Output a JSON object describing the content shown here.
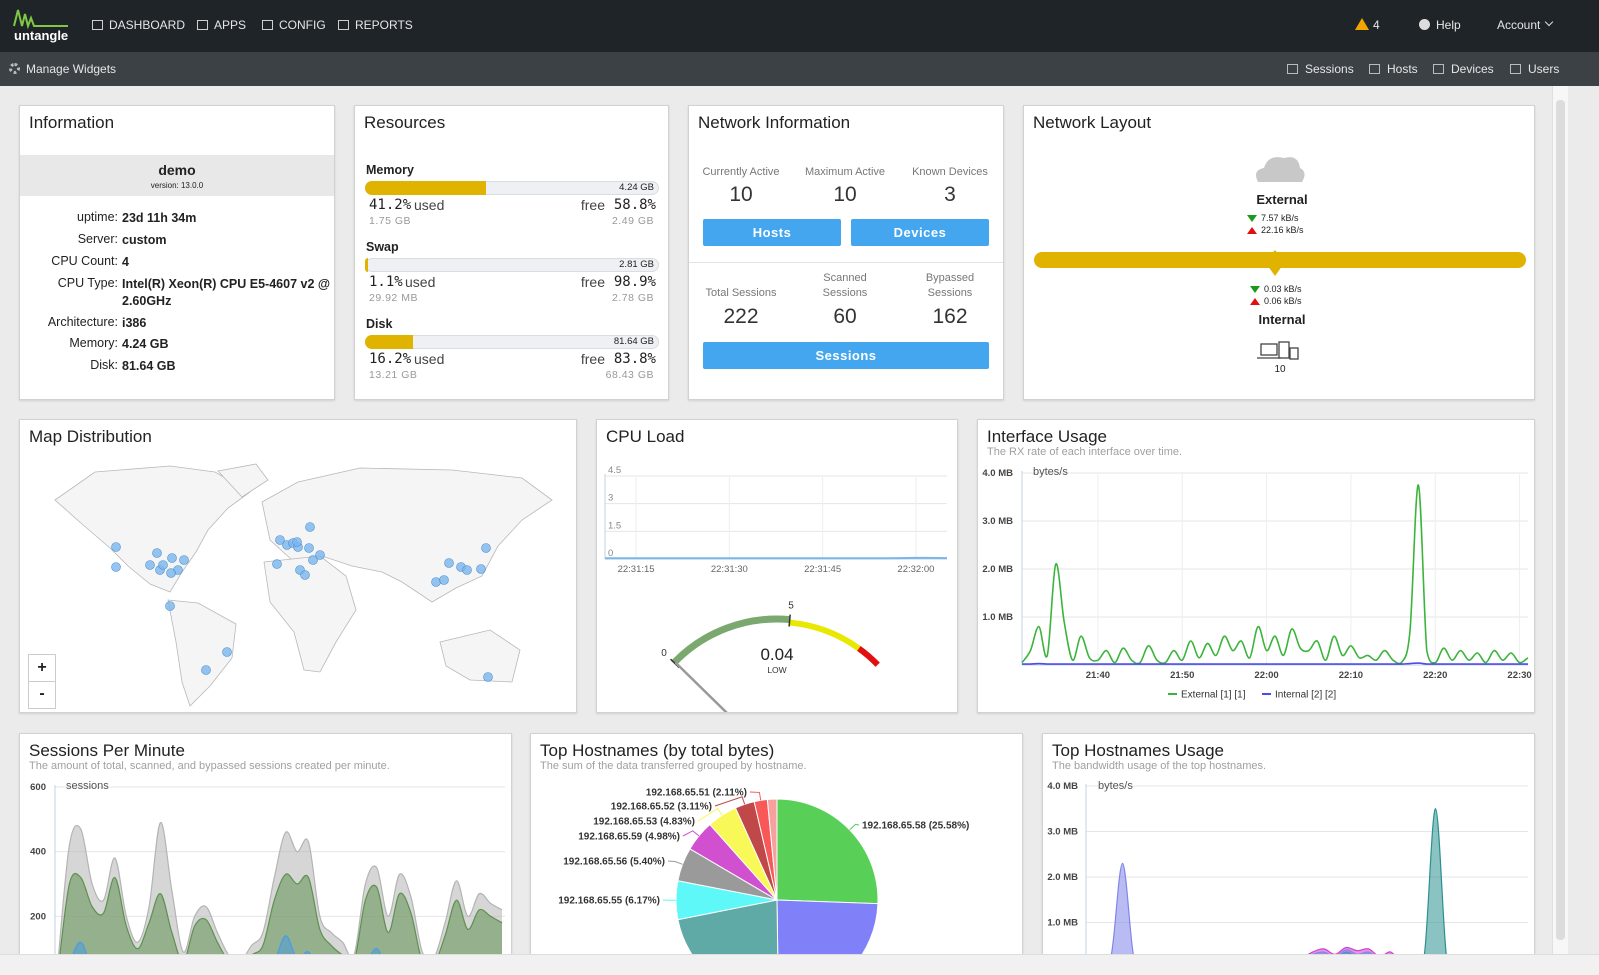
{
  "nav": {
    "logo": "untangle",
    "items": [
      "DASHBOARD",
      "APPS",
      "CONFIG",
      "REPORTS"
    ],
    "alert_count": 4,
    "help": "Help",
    "account": "Account"
  },
  "toolbar": {
    "manage": "Manage Widgets",
    "links": [
      "Sessions",
      "Hosts",
      "Devices",
      "Users"
    ]
  },
  "information": {
    "title": "Information",
    "hostname": "demo",
    "version": "version: 13.0.0",
    "rows": [
      {
        "label": "uptime:",
        "value": "23d 11h 34m"
      },
      {
        "label": "Server:",
        "value": "custom"
      },
      {
        "label": "CPU Count:",
        "value": 4
      },
      {
        "label": "CPU Type:",
        "value": "Intel(R) Xeon(R) CPU E5-4607 v2 @ 2.60GHz"
      },
      {
        "label": "Architecture:",
        "value": "i386"
      },
      {
        "label": "Memory:",
        "value": "4.24 GB"
      },
      {
        "label": "Disk:",
        "value": "81.64 GB"
      }
    ]
  },
  "resources": {
    "title": "Resources",
    "used": "used",
    "free": "free",
    "color": "#dfb300",
    "items": [
      {
        "name": "Memory",
        "total": "4.24 GB",
        "used_pct": {
          "value": 41.2,
          "label": "41.2%"
        },
        "used_amount": "1.75 GB",
        "free_pct": "58.8%",
        "free_amount": "2.49 GB"
      },
      {
        "name": "Swap",
        "total": "2.81 GB",
        "used_pct": {
          "value": 1.1,
          "label": "1.1%"
        },
        "used_amount": "29.92 MB",
        "free_pct": "98.9%",
        "free_amount": "2.78 GB"
      },
      {
        "name": "Disk",
        "total": "81.64 GB",
        "used_pct": {
          "value": 16.2,
          "label": "16.2%"
        },
        "used_amount": "13.21 GB",
        "free_pct": "83.8%",
        "free_amount": "68.43 GB"
      }
    ]
  },
  "network_information": {
    "title": "Network Information",
    "stats": [
      {
        "label": "Currently Active",
        "value": 10
      },
      {
        "label": "Maximum Active",
        "value": 10
      },
      {
        "label": "Known Devices",
        "value": 3
      }
    ],
    "buttons": [
      "Hosts",
      "Devices"
    ],
    "session_stats": [
      {
        "label": "Total Sessions",
        "value": 222
      },
      {
        "label": "Scanned Sessions",
        "value": 60
      },
      {
        "label": "Bypassed Sessions",
        "value": 162
      }
    ],
    "sessions_button": "Sessions"
  },
  "network_layout": {
    "title": "Network Layout",
    "external": {
      "name": "External",
      "down": "7.57 kB/s",
      "up": "22.16 kB/s"
    },
    "internal": {
      "name": "Internal",
      "down": "0.03 kB/s",
      "up": "0.06 kB/s",
      "devices": 10
    }
  },
  "map": {
    "title": "Map Distribution",
    "zoom_in": "+",
    "zoom_out": "-"
  },
  "chart_data": [
    {
      "type": "line",
      "title": "CPU Load",
      "color": "#7cb5ec",
      "categories": [
        null,
        "22:31:15",
        null,
        null,
        "22:31:30",
        null,
        null,
        "22:31:45",
        null,
        null,
        "22:32:00",
        null
      ],
      "values": [
        0.04,
        0.04,
        0.04,
        0.04,
        0.04,
        0.04,
        0.04,
        0.04,
        0.04,
        0.04,
        0.06,
        0.05
      ],
      "ylim": [
        0,
        4.5
      ],
      "yticks": [
        0,
        1.5,
        3,
        4.5
      ],
      "grid": true
    },
    {
      "type": "gauge",
      "value": 0.04,
      "level": "LOW",
      "lim": [
        0,
        9
      ],
      "ticks": [
        0,
        5
      ],
      "bands": [
        {
          "from": 0,
          "to": 5,
          "color": "#7ba86f"
        },
        {
          "from": 5,
          "to": 8,
          "color": "#e8e800"
        },
        {
          "from": 8,
          "to": 9,
          "color": "#e01010"
        }
      ]
    },
    {
      "type": "line",
      "title": "Interface Usage",
      "subtitle": "The RX rate of each interface over time.",
      "ylabel": "bytes/s",
      "legend": "bottom",
      "grid": true,
      "categories": [
        null,
        null,
        null,
        null,
        null,
        null,
        null,
        null,
        null,
        "21:40",
        null,
        null,
        null,
        null,
        null,
        null,
        null,
        null,
        null,
        "21:50",
        null,
        null,
        null,
        null,
        null,
        null,
        null,
        null,
        null,
        "22:00",
        null,
        null,
        null,
        null,
        null,
        null,
        null,
        null,
        null,
        "22:10",
        null,
        null,
        null,
        null,
        null,
        null,
        null,
        null,
        null,
        "22:20",
        null,
        null,
        null,
        null,
        null,
        null,
        null,
        null,
        null,
        "22:30",
        null
      ],
      "series": [
        {
          "name": "External [1] [1]",
          "color": "#3cb43c",
          "values": [
            50000,
            300000,
            800000,
            200000,
            2100000,
            900000,
            100000,
            600000,
            150000,
            100000,
            300000,
            50000,
            350000,
            100000,
            50000,
            400000,
            100000,
            50000,
            300000,
            100000,
            500000,
            150000,
            450000,
            200000,
            600000,
            300000,
            500000,
            150000,
            800000,
            300000,
            600000,
            200000,
            750000,
            350000,
            300000,
            500000,
            100000,
            600000,
            200000,
            400000,
            150000,
            200000,
            100000,
            300000,
            100000,
            50000,
            700000,
            3750000,
            300000,
            50000,
            350000,
            100000,
            300000,
            100000,
            250000,
            50000,
            300000,
            100000,
            250000,
            50000,
            150000
          ]
        },
        {
          "name": "Internal [2] [2]",
          "color": "#4b4bf0",
          "values": [
            20000,
            20000,
            30000,
            20000,
            20000,
            20000,
            20000,
            20000,
            20000,
            20000,
            20000,
            20000,
            20000,
            20000,
            20000,
            20000,
            20000,
            20000,
            20000,
            20000,
            20000,
            20000,
            20000,
            20000,
            20000,
            20000,
            20000,
            20000,
            20000,
            20000,
            20000,
            20000,
            20000,
            20000,
            20000,
            20000,
            20000,
            20000,
            20000,
            20000,
            20000,
            20000,
            20000,
            20000,
            20000,
            20000,
            30000,
            40000,
            20000,
            20000,
            20000,
            20000,
            20000,
            20000,
            20000,
            20000,
            20000,
            20000,
            20000,
            20000,
            20000
          ]
        }
      ],
      "ylim": [
        0,
        4000000
      ],
      "yticks": [
        {
          "value": 1000000,
          "label": "1.0 MB"
        },
        {
          "value": 2000000,
          "label": "2.0 MB"
        },
        {
          "value": 3000000,
          "label": "3.0 MB"
        },
        {
          "value": 4000000,
          "label": "4.0 MB"
        }
      ]
    },
    {
      "type": "area",
      "title": "Sessions Per Minute",
      "subtitle": "The amount of total, scanned, and bypassed sessions created per minute.",
      "ylabel": "sessions",
      "grid": true,
      "series": [
        {
          "color": "#b4b4b4",
          "values": [
            60,
            420,
            470,
            300,
            250,
            380,
            200,
            120,
            230,
            490,
            280,
            90,
            200,
            230,
            150,
            80,
            60,
            110,
            150,
            320,
            460,
            400,
            430,
            200,
            150,
            120,
            80,
            300,
            350,
            200,
            330,
            260,
            90,
            70,
            180,
            310,
            200,
            270,
            240,
            220
          ]
        },
        {
          "color": "#5e9150",
          "values": [
            30,
            300,
            320,
            230,
            210,
            320,
            170,
            100,
            180,
            270,
            150,
            60,
            170,
            190,
            120,
            60,
            40,
            80,
            110,
            250,
            330,
            300,
            320,
            160,
            110,
            80,
            60,
            250,
            290,
            150,
            270,
            210,
            60,
            50,
            140,
            250,
            160,
            220,
            200,
            180
          ]
        },
        {
          "color": "#4a9de0",
          "values": [
            10,
            60,
            120,
            40,
            30,
            50,
            20,
            10,
            30,
            60,
            20,
            10,
            30,
            40,
            20,
            10,
            5,
            10,
            20,
            60,
            140,
            70,
            90,
            30,
            20,
            10,
            10,
            50,
            100,
            30,
            40,
            30,
            10,
            5,
            20,
            40,
            20,
            30,
            30,
            20
          ]
        }
      ],
      "ylim": [
        0,
        600
      ],
      "yticks": [
        200,
        400,
        600
      ]
    },
    {
      "type": "pie",
      "title": "Top Hostnames (by total bytes)",
      "subtitle": "The sum of the data transferred grouped by hostname.",
      "values": [
        25.58,
        24.2,
        22.1,
        6.17,
        5.4,
        4.98,
        4.83,
        3.11,
        2.11,
        1.52
      ],
      "value_labels": [
        "192.168.65.58 (25.58%)",
        null,
        null,
        "192.168.65.55 (6.17%)",
        "192.168.65.56 (5.40%)",
        "192.168.65.59 (4.98%)",
        "192.168.65.53 (4.83%)",
        "192.168.65.52 (3.11%)",
        "192.168.65.51 (2.11%)",
        null
      ],
      "colors": [
        "#58d058",
        "#8080f8",
        "#5fa9a7",
        "#5ff8f8",
        "#9a9a9a",
        "#d050d0",
        "#f8f858",
        "#c04848",
        "#f85858",
        "#f8a0a0"
      ]
    },
    {
      "type": "area",
      "title": "Top Hostnames Usage",
      "subtitle": "The bandwidth usage of the top hostnames.",
      "ylabel": "bytes/s",
      "grid": true,
      "series": [
        {
          "color": "#d040d0",
          "values": [
            20000,
            20000,
            20000,
            20000,
            20000,
            20000,
            20000,
            20000,
            20000,
            20000,
            20000,
            20000,
            20000,
            20000,
            20000,
            20000,
            20000,
            20000,
            20000,
            200000,
            350000,
            420000,
            300000,
            450000,
            380000,
            420000,
            250000,
            350000,
            80000,
            20000,
            20000,
            20000,
            20000,
            20000,
            20000,
            20000,
            20000,
            20000,
            20000,
            20000
          ]
        },
        {
          "color": "#2b908f",
          "values": [
            30000,
            30000,
            30000,
            30000,
            30000,
            30000,
            30000,
            30000,
            30000,
            30000,
            30000,
            30000,
            30000,
            30000,
            30000,
            30000,
            30000,
            30000,
            30000,
            150000,
            250000,
            300000,
            200000,
            350000,
            250000,
            300000,
            150000,
            250000,
            50000,
            30000,
            300000,
            3500000,
            200000,
            30000,
            30000,
            30000,
            30000,
            30000,
            30000,
            30000
          ]
        },
        {
          "color": "#8085e9",
          "values": [
            50000,
            100000,
            300000,
            2300000,
            250000,
            80000,
            60000,
            150000,
            50000,
            100000,
            60000,
            40000,
            120000,
            50000,
            40000,
            60000,
            30000,
            50000,
            40000,
            200000,
            300000,
            350000,
            250000,
            400000,
            300000,
            350000,
            200000,
            300000,
            100000,
            60000,
            80000,
            50000,
            40000,
            60000,
            50000,
            40000,
            100000,
            50000,
            40000,
            60000
          ]
        }
      ],
      "ylim": [
        0,
        4000000
      ],
      "yticks": [
        {
          "value": 1000000,
          "label": "1.0 MB"
        },
        {
          "value": 2000000,
          "label": "2.0 MB"
        },
        {
          "value": 3000000,
          "label": "3.0 MB"
        },
        {
          "value": 4000000,
          "label": "4.0 MB"
        }
      ]
    }
  ]
}
